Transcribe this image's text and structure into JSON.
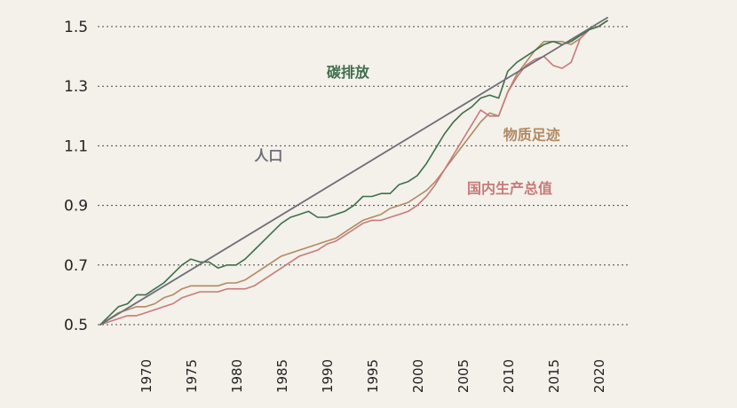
{
  "chart_data": {
    "type": "line",
    "title": "",
    "xlabel": "",
    "ylabel": "",
    "xlim": [
      1965,
      2021
    ],
    "ylim": [
      0.5,
      1.5
    ],
    "yticks": [
      "0.5",
      "0.7",
      "0.9",
      "1.1",
      "1.3",
      "1.5"
    ],
    "xticks": [
      "1970",
      "1975",
      "1980",
      "1985",
      "1990",
      "1995",
      "2000",
      "2005",
      "2010",
      "2015",
      "2020"
    ],
    "grid": "horizontal dashed",
    "series": [
      {
        "name": "人口",
        "color": "#6e6e78",
        "x": [
          1965,
          2021
        ],
        "values": [
          0.5,
          1.53
        ]
      },
      {
        "name": "碳排放",
        "color": "#3f6f4c",
        "x": [
          1965,
          1966,
          1967,
          1968,
          1969,
          1970,
          1971,
          1972,
          1973,
          1974,
          1975,
          1976,
          1977,
          1978,
          1979,
          1980,
          1981,
          1982,
          1983,
          1984,
          1985,
          1986,
          1987,
          1988,
          1989,
          1990,
          1991,
          1992,
          1993,
          1994,
          1995,
          1996,
          1997,
          1998,
          1999,
          2000,
          2001,
          2002,
          2003,
          2004,
          2005,
          2006,
          2007,
          2008,
          2009,
          2010,
          2011,
          2012,
          2013,
          2014,
          2015,
          2016,
          2017,
          2018,
          2019,
          2020,
          2021
        ],
        "values": [
          0.5,
          0.53,
          0.56,
          0.57,
          0.6,
          0.6,
          0.62,
          0.64,
          0.67,
          0.7,
          0.72,
          0.71,
          0.71,
          0.69,
          0.7,
          0.7,
          0.72,
          0.75,
          0.78,
          0.81,
          0.84,
          0.86,
          0.87,
          0.88,
          0.86,
          0.86,
          0.87,
          0.88,
          0.9,
          0.93,
          0.93,
          0.94,
          0.94,
          0.97,
          0.98,
          1.0,
          1.04,
          1.09,
          1.14,
          1.18,
          1.21,
          1.23,
          1.26,
          1.27,
          1.26,
          1.35,
          1.38,
          1.4,
          1.42,
          1.44,
          1.45,
          1.44,
          1.45,
          1.47,
          1.49,
          1.5,
          1.52
        ]
      },
      {
        "name": "物质足迹",
        "color": "#b08a62",
        "x": [
          1965,
          1966,
          1967,
          1968,
          1969,
          1970,
          1971,
          1972,
          1973,
          1974,
          1975,
          1976,
          1977,
          1978,
          1979,
          1980,
          1981,
          1982,
          1983,
          1984,
          1985,
          1986,
          1987,
          1988,
          1989,
          1990,
          1991,
          1992,
          1993,
          1994,
          1995,
          1996,
          1997,
          1998,
          1999,
          2000,
          2001,
          2002,
          2003,
          2004,
          2005,
          2006,
          2007,
          2008,
          2009,
          2010,
          2011,
          2012,
          2013,
          2014,
          2015,
          2016,
          2017,
          2018,
          2019,
          2020,
          2021
        ],
        "values": [
          0.5,
          0.52,
          0.54,
          0.55,
          0.56,
          0.56,
          0.57,
          0.59,
          0.6,
          0.62,
          0.63,
          0.63,
          0.63,
          0.63,
          0.64,
          0.64,
          0.65,
          0.67,
          0.69,
          0.71,
          0.73,
          0.74,
          0.75,
          0.76,
          0.77,
          0.78,
          0.79,
          0.81,
          0.83,
          0.85,
          0.86,
          0.87,
          0.89,
          0.9,
          0.91,
          0.93,
          0.95,
          0.98,
          1.02,
          1.06,
          1.1,
          1.14,
          1.18,
          1.21,
          1.2,
          1.28,
          1.34,
          1.38,
          1.42,
          1.45,
          1.45,
          1.45,
          1.44,
          1.46,
          1.49,
          1.5,
          1.52
        ]
      },
      {
        "name": "国内生产总值",
        "color": "#c87a7a",
        "x": [
          1965,
          1966,
          1967,
          1968,
          1969,
          1970,
          1971,
          1972,
          1973,
          1974,
          1975,
          1976,
          1977,
          1978,
          1979,
          1980,
          1981,
          1982,
          1983,
          1984,
          1985,
          1986,
          1987,
          1988,
          1989,
          1990,
          1991,
          1992,
          1993,
          1994,
          1995,
          1996,
          1997,
          1998,
          1999,
          2000,
          2001,
          2002,
          2003,
          2004,
          2005,
          2006,
          2007,
          2008,
          2009,
          2010,
          2011,
          2012,
          2013,
          2014,
          2015,
          2016,
          2017,
          2018,
          2019,
          2020,
          2021
        ],
        "values": [
          0.5,
          0.51,
          0.52,
          0.53,
          0.53,
          0.54,
          0.55,
          0.56,
          0.57,
          0.59,
          0.6,
          0.61,
          0.61,
          0.61,
          0.62,
          0.62,
          0.62,
          0.63,
          0.65,
          0.67,
          0.69,
          0.71,
          0.73,
          0.74,
          0.75,
          0.77,
          0.78,
          0.8,
          0.82,
          0.84,
          0.85,
          0.85,
          0.86,
          0.87,
          0.88,
          0.9,
          0.93,
          0.97,
          1.02,
          1.07,
          1.12,
          1.17,
          1.22,
          1.2,
          1.2,
          1.28,
          1.33,
          1.37,
          1.39,
          1.4,
          1.37,
          1.36,
          1.38,
          1.46,
          1.49,
          1.5,
          1.52
        ]
      }
    ],
    "annotations": [
      {
        "text": "碳排放",
        "series": "碳排放",
        "x": 1990,
        "y": 1.33
      },
      {
        "text": "人口",
        "series": "人口",
        "x": 1982,
        "y": 1.05
      },
      {
        "text": "物质足迹",
        "series": "物质足迹",
        "x": 2009.5,
        "y": 1.12
      },
      {
        "text": "国内生产总值",
        "series": "国内生产总值",
        "x": 2005.5,
        "y": 0.94
      }
    ]
  }
}
